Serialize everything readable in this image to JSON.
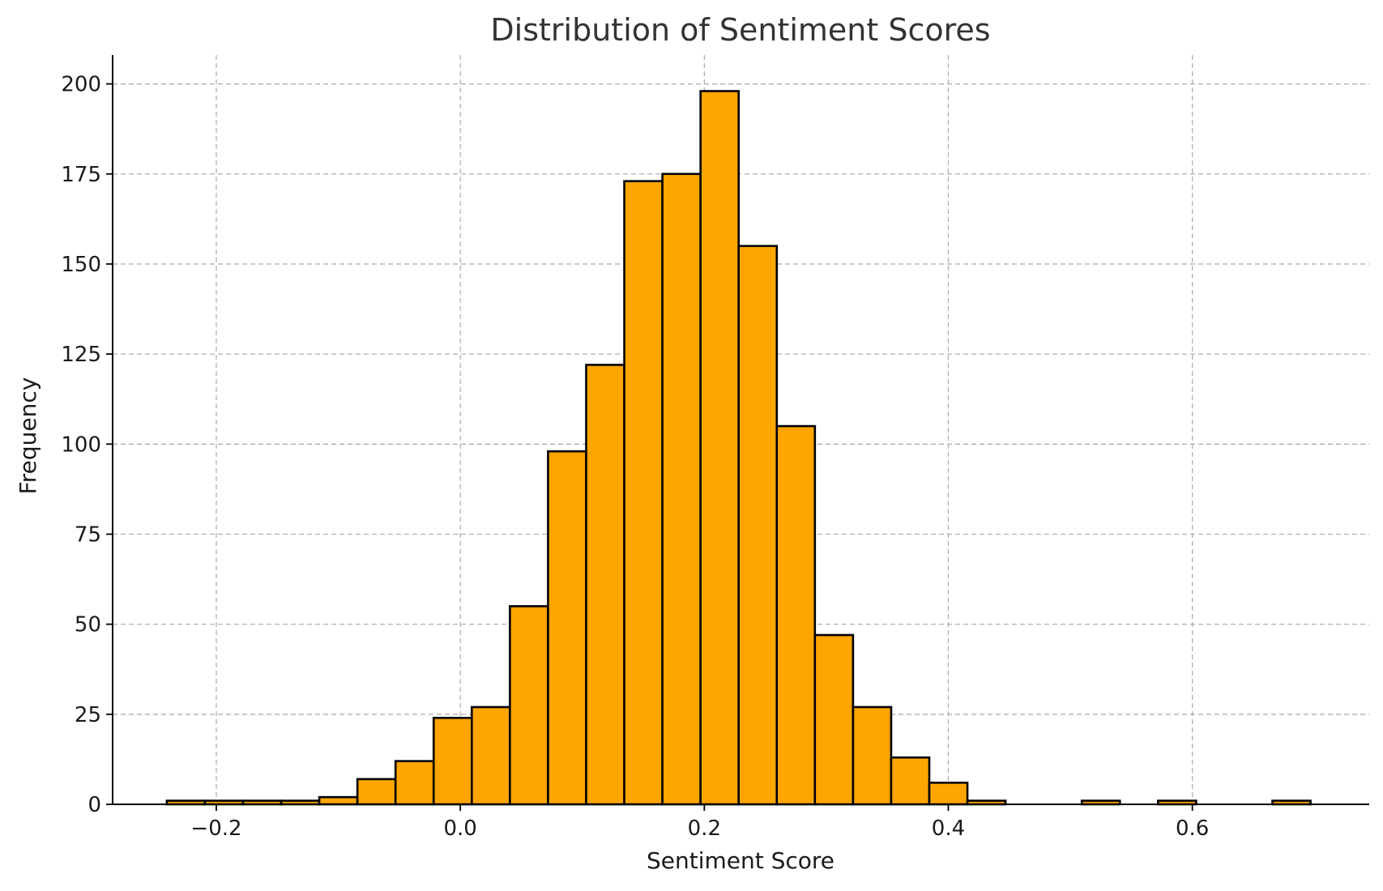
{
  "chart_data": {
    "type": "bar",
    "title": "Distribution of Sentiment Scores",
    "xlabel": "Sentiment Score",
    "ylabel": "Frequency",
    "xlim": [
      -0.285,
      0.745
    ],
    "ylim": [
      0,
      208
    ],
    "grid": true,
    "bar_color": "#FFA500",
    "edge_color": "#000000",
    "grid_color": "#b0b0b0",
    "x_ticks": [
      {
        "value": -0.2,
        "label": "−0.2"
      },
      {
        "value": 0.0,
        "label": "0.0"
      },
      {
        "value": 0.2,
        "label": "0.2"
      },
      {
        "value": 0.4,
        "label": "0.4"
      },
      {
        "value": 0.6,
        "label": "0.6"
      }
    ],
    "y_ticks": [
      {
        "value": 0,
        "label": "0"
      },
      {
        "value": 25,
        "label": "25"
      },
      {
        "value": 50,
        "label": "50"
      },
      {
        "value": 75,
        "label": "75"
      },
      {
        "value": 100,
        "label": "100"
      },
      {
        "value": 125,
        "label": "125"
      },
      {
        "value": 150,
        "label": "150"
      },
      {
        "value": 175,
        "label": "175"
      },
      {
        "value": 200,
        "label": "200"
      }
    ],
    "bin_start": -0.2406,
    "bin_width": 0.03125,
    "values": [
      1,
      1,
      1,
      1,
      2,
      7,
      12,
      24,
      27,
      55,
      98,
      122,
      173,
      175,
      198,
      155,
      105,
      47,
      27,
      13,
      6,
      1,
      0,
      0,
      1,
      0,
      1,
      0,
      0,
      1
    ]
  }
}
